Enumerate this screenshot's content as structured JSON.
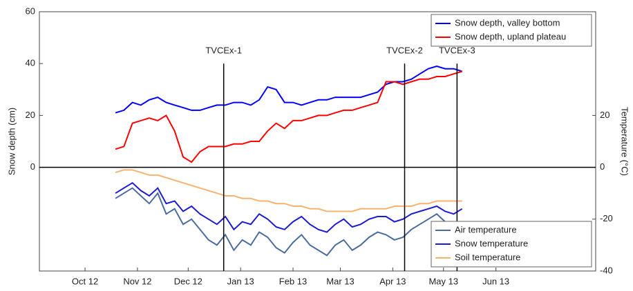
{
  "chart_data": {
    "type": "line",
    "ylabel": "Snow depth (cm)",
    "y2label": "Temperature (°C)",
    "xlim": [
      3,
      332
    ],
    "xticks": [
      {
        "value": 30,
        "label": "Oct 12"
      },
      {
        "value": 61,
        "label": "Nov 12"
      },
      {
        "value": 91,
        "label": "Dec 12"
      },
      {
        "value": 122,
        "label": "Jan 13"
      },
      {
        "value": 153,
        "label": "Feb 13"
      },
      {
        "value": 181,
        "label": "Mar 13"
      },
      {
        "value": 212,
        "label": "Apr 13"
      },
      {
        "value": 242,
        "label": "May 13"
      },
      {
        "value": 273,
        "label": "Jun 13"
      }
    ],
    "ylim": [
      -40,
      60
    ],
    "yticks": [
      0,
      20,
      40,
      60
    ],
    "y2lim": [
      -40,
      60
    ],
    "y2ticks": [
      -40,
      -20,
      0,
      20
    ],
    "x": [
      48,
      53,
      58,
      63,
      68,
      73,
      78,
      83,
      88,
      93,
      98,
      103,
      108,
      113,
      118,
      123,
      128,
      133,
      138,
      143,
      148,
      153,
      158,
      163,
      168,
      173,
      178,
      183,
      188,
      193,
      198,
      203,
      208,
      213,
      218,
      223,
      228,
      233,
      238,
      243,
      248,
      253
    ],
    "series": [
      {
        "name": "Snow depth, valley bottom",
        "color": "#0000ff",
        "axis": "y",
        "values": [
          21,
          22,
          25,
          24,
          26,
          27,
          25,
          24,
          23,
          22,
          22,
          23,
          24,
          24,
          25,
          25,
          24,
          26,
          31,
          30,
          25,
          25,
          24,
          25,
          26,
          26,
          27,
          27,
          27,
          27,
          28,
          29,
          32,
          33,
          33,
          34,
          36,
          38,
          39,
          38,
          38,
          37
        ]
      },
      {
        "name": "Snow depth, upland plateau",
        "color": "#ff0000",
        "axis": "y",
        "values": [
          7,
          8,
          17,
          18,
          19,
          18,
          20,
          14,
          4,
          2,
          6,
          8,
          8,
          8,
          9,
          9,
          10,
          10,
          14,
          17,
          15,
          18,
          18,
          19,
          20,
          20,
          21,
          22,
          22,
          23,
          24,
          25,
          33,
          33,
          32,
          33,
          34,
          34,
          35,
          35,
          36,
          37
        ]
      },
      {
        "name": "Air temperature",
        "color": "#4a6b9e",
        "axis": "y2",
        "values": [
          -12,
          -10,
          -8,
          -11,
          -14,
          -10,
          -18,
          -16,
          -22,
          -20,
          -24,
          -28,
          -30,
          -26,
          -32,
          -28,
          -30,
          -25,
          -27,
          -31,
          -33,
          -29,
          -26,
          -30,
          -32,
          -34,
          -30,
          -28,
          -32,
          -30,
          -27,
          -25,
          -26,
          -28,
          -27,
          -24,
          -22,
          -20,
          -18,
          -21,
          -25,
          -24
        ]
      },
      {
        "name": "Snow temperature",
        "color": "#1a1ad6",
        "axis": "y2",
        "values": [
          -10,
          -8,
          -6,
          -9,
          -11,
          -8,
          -14,
          -13,
          -17,
          -15,
          -18,
          -20,
          -22,
          -19,
          -24,
          -21,
          -22,
          -18,
          -20,
          -23,
          -24,
          -21,
          -19,
          -22,
          -24,
          -25,
          -22,
          -20,
          -23,
          -22,
          -20,
          -19,
          -19,
          -21,
          -20,
          -18,
          -17,
          -16,
          -15,
          -17,
          -18,
          -16
        ]
      },
      {
        "name": "Soil temperature",
        "color": "#f7b36e",
        "axis": "y2",
        "values": [
          -2,
          -1,
          -1,
          -2,
          -3,
          -3,
          -4,
          -5,
          -6,
          -7,
          -8,
          -9,
          -10,
          -11,
          -11,
          -12,
          -12,
          -13,
          -13,
          -14,
          -14,
          -15,
          -15,
          -16,
          -16,
          -17,
          -17,
          -17,
          -17,
          -16,
          -16,
          -16,
          -16,
          -15,
          -15,
          -15,
          -14,
          -14,
          -13,
          -13,
          -13,
          -13
        ]
      }
    ],
    "events": [
      {
        "label": "TVCEx-1",
        "x": 112,
        "y": 40
      },
      {
        "label": "TVCEx-2",
        "x": 219,
        "y": 40
      },
      {
        "label": "TVCEx-3",
        "x": 250,
        "y": 40
      }
    ]
  }
}
